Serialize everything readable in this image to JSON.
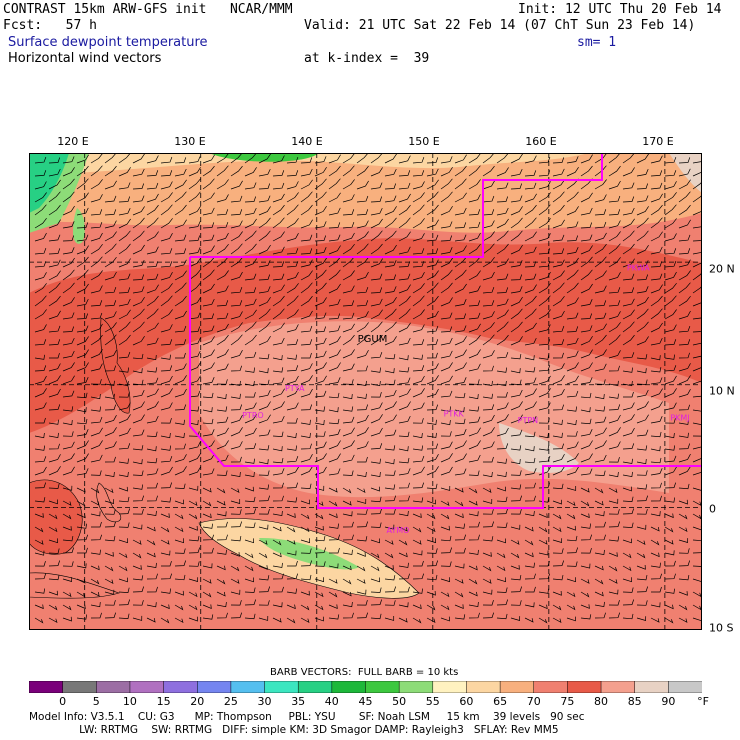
{
  "header": {
    "line1_left": "CONTRAST 15km ARW-GFS init   NCAR/MMM",
    "line1_right": "Init: 12 UTC Thu 20 Feb 14",
    "line2_left": "Fcst:   57 h",
    "line2_right": "Valid: 21 UTC Sat 22 Feb 14 (07 ChT Sun 23 Feb 14)",
    "line3_left": "Surface dewpoint temperature",
    "line3_right": "sm= 1",
    "line4_left": "Horizontal wind vectors",
    "line4_mid": "at k-index =  39"
  },
  "map": {
    "lon_labels": [
      "120 E",
      "130 E",
      "140 E",
      "150 E",
      "160 E",
      "170 E"
    ],
    "lat_labels": [
      "20 N",
      "10 N",
      "0",
      "10 S"
    ],
    "lon_range": [
      115.2,
      173.2
    ],
    "lat_range": [
      -10,
      28.9
    ],
    "stations": [
      {
        "name": "PGUM",
        "lon": 144.8,
        "lat": 13.5
      },
      {
        "name": "PTYA",
        "lon": 138.1,
        "lat": 9.5
      },
      {
        "name": "PTRO",
        "lon": 134.5,
        "lat": 7.3
      },
      {
        "name": "PTKK",
        "lon": 151.8,
        "lat": 7.4
      },
      {
        "name": "PTPN",
        "lon": 158.2,
        "lat": 6.9
      },
      {
        "name": "PKMJ",
        "lon": 171.3,
        "lat": 7.1
      },
      {
        "name": "PKWA",
        "lon": 167.7,
        "lat": 19.3
      },
      {
        "name": "AYMO",
        "lon": 147.0,
        "lat": -2.1
      }
    ],
    "colors": {
      "boundary": "#ff00ff",
      "grid": "#000000",
      "ocean_dominant": "#f08070",
      "band_high": "#e85a48"
    }
  },
  "colorbar": {
    "barb_title": "BARB VECTORS:  FULL BARB = 10 kts",
    "labels": [
      "0",
      "5",
      "10",
      "15",
      "20",
      "25",
      "30",
      "35",
      "40",
      "45",
      "50",
      "55",
      "60",
      "65",
      "70",
      "75",
      "80",
      "85",
      "90"
    ],
    "unit": "°F",
    "colors": [
      "#7a007a",
      "#787878",
      "#9c6ea4",
      "#b070c0",
      "#8e6fdf",
      "#7585f0",
      "#55bfef",
      "#3ce6c0",
      "#27d084",
      "#1db83a",
      "#3dc83f",
      "#8ddc78",
      "#fff2c0",
      "#fcd6a2",
      "#f8b07e",
      "#f08070",
      "#e85a48",
      "#f4a08e",
      "#e8d2c4",
      "#c8c8c8"
    ]
  },
  "footer": {
    "line1": "Model Info: V3.5.1    CU: G3      MP: Thompson     PBL: YSU       SF: Noah LSM     15 km    39 levels   90 sec",
    "line2": "               LW: RRTMG    SW: RRTMG   DIFF: simple KM: 3D Smagor DAMP: Rayleigh3   SFLAY: Rev MM5"
  }
}
